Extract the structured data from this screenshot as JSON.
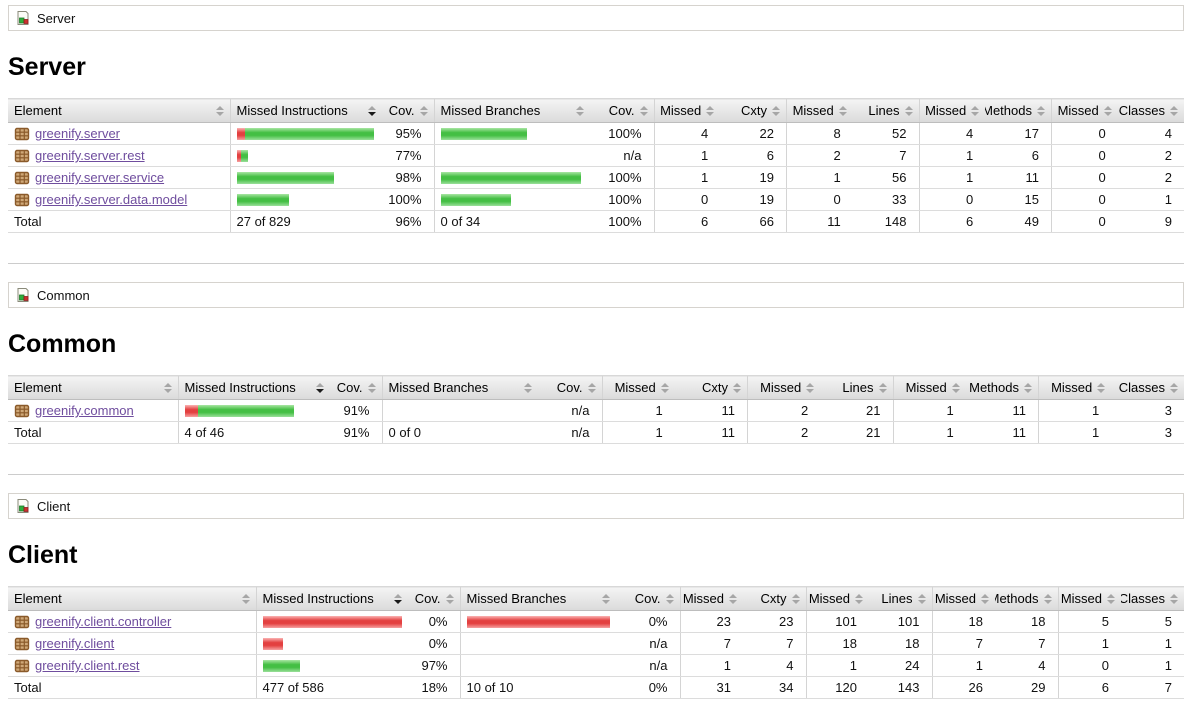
{
  "colors": {
    "link_purple": "#6f4d9e",
    "bar_red": "#e34040",
    "bar_green": "#44bf44",
    "header_gradient_top": "#f4f4f4",
    "header_gradient_bottom": "#dadada",
    "breadcrumb_border": "#d6d3ce"
  },
  "icons": {
    "breadcrumb_icon": "coverage-group-icon",
    "package_icon": "package-icon",
    "sort_icon": "sort-arrows-icon",
    "sorted_column": "Missed Instructions"
  },
  "table": {
    "columns": [
      "Element",
      "Missed Instructions",
      "Cov.",
      "Missed Branches",
      "Cov.",
      "Missed",
      "Cxty",
      "Missed",
      "Lines",
      "Missed",
      "Methods",
      "Missed",
      "Classes"
    ]
  },
  "sections": [
    {
      "breadcrumb": "Server",
      "title": "Server",
      "rows": [
        {
          "element": "greenify.server",
          "instr_bar": {
            "red": 8,
            "green": 129
          },
          "instr_cov": "95%",
          "branch_bar": {
            "red": 0,
            "green": 86
          },
          "branch_cov": "100%",
          "values": [
            "4",
            "22",
            "8",
            "52",
            "4",
            "17",
            "0",
            "4"
          ]
        },
        {
          "element": "greenify.server.rest",
          "instr_bar": {
            "red": 4,
            "green": 7
          },
          "instr_cov": "77%",
          "branch_bar": null,
          "branch_cov": "n/a",
          "values": [
            "1",
            "6",
            "2",
            "7",
            "1",
            "6",
            "0",
            "2"
          ]
        },
        {
          "element": "greenify.server.service",
          "instr_bar": {
            "red": 0,
            "green": 97
          },
          "instr_cov": "98%",
          "branch_bar": {
            "red": 0,
            "green": 140
          },
          "branch_cov": "100%",
          "values": [
            "1",
            "19",
            "1",
            "56",
            "1",
            "11",
            "0",
            "2"
          ]
        },
        {
          "element": "greenify.server.data.model",
          "instr_bar": {
            "red": 0,
            "green": 52
          },
          "instr_cov": "100%",
          "branch_bar": {
            "red": 0,
            "green": 70
          },
          "branch_cov": "100%",
          "values": [
            "0",
            "19",
            "0",
            "33",
            "0",
            "15",
            "0",
            "1"
          ]
        }
      ],
      "total": {
        "label": "Total",
        "instr": "27 of 829",
        "instr_cov": "96%",
        "branch": "0 of 34",
        "branch_cov": "100%",
        "values": [
          "6",
          "66",
          "11",
          "148",
          "6",
          "49",
          "0",
          "9"
        ]
      }
    },
    {
      "breadcrumb": "Common",
      "title": "Common",
      "rows": [
        {
          "element": "greenify.common",
          "instr_bar": {
            "red": 13,
            "green": 96
          },
          "instr_cov": "91%",
          "branch_bar": null,
          "branch_cov": "n/a",
          "values": [
            "1",
            "11",
            "2",
            "21",
            "1",
            "11",
            "1",
            "3"
          ]
        }
      ],
      "total": {
        "label": "Total",
        "instr": "4 of 46",
        "instr_cov": "91%",
        "branch": "0 of 0",
        "branch_cov": "n/a",
        "values": [
          "1",
          "11",
          "2",
          "21",
          "1",
          "11",
          "1",
          "3"
        ]
      }
    },
    {
      "breadcrumb": "Client",
      "title": "Client",
      "rows": [
        {
          "element": "greenify.client.controller",
          "instr_bar": {
            "red": 143,
            "green": 0
          },
          "instr_cov": "0%",
          "branch_bar": {
            "red": 156,
            "green": 0
          },
          "branch_cov": "0%",
          "values": [
            "23",
            "23",
            "101",
            "101",
            "18",
            "18",
            "5",
            "5"
          ]
        },
        {
          "element": "greenify.client",
          "instr_bar": {
            "red": 20,
            "green": 0
          },
          "instr_cov": "0%",
          "branch_bar": null,
          "branch_cov": "n/a",
          "values": [
            "7",
            "7",
            "18",
            "18",
            "7",
            "7",
            "1",
            "1"
          ]
        },
        {
          "element": "greenify.client.rest",
          "instr_bar": {
            "red": 0,
            "green": 37
          },
          "instr_cov": "97%",
          "branch_bar": null,
          "branch_cov": "n/a",
          "values": [
            "1",
            "4",
            "1",
            "24",
            "1",
            "4",
            "0",
            "1"
          ]
        }
      ],
      "total": {
        "label": "Total",
        "instr": "477 of 586",
        "instr_cov": "18%",
        "branch": "10 of 10",
        "branch_cov": "0%",
        "values": [
          "31",
          "34",
          "120",
          "143",
          "26",
          "29",
          "6",
          "7"
        ]
      }
    }
  ]
}
